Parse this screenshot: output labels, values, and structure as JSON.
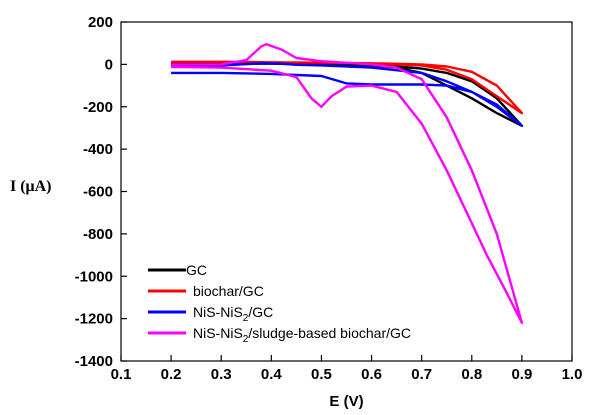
{
  "chart_data": {
    "type": "line",
    "xlabel": "E (V)",
    "ylabel": "I (μA)",
    "xlim": [
      0.1,
      1.0
    ],
    "ylim": [
      -1400,
      200
    ],
    "xticks": [
      "0.1",
      "0.2",
      "0.3",
      "0.4",
      "0.5",
      "0.6",
      "0.7",
      "0.8",
      "0.9",
      "1.0"
    ],
    "yticks": [
      "200",
      "0",
      "-200",
      "-400",
      "-600",
      "-800",
      "-1000",
      "-1200",
      "-1400"
    ],
    "grid": false,
    "legend_position": "bottom-left",
    "series": [
      {
        "name": "GC",
        "legend_main": "GC",
        "legend_sub": "",
        "legend_tail": "",
        "color": "#000000",
        "points": [
          [
            0.2,
            5
          ],
          [
            0.3,
            5
          ],
          [
            0.4,
            4
          ],
          [
            0.5,
            0
          ],
          [
            0.6,
            -5
          ],
          [
            0.65,
            -10
          ],
          [
            0.7,
            -20
          ],
          [
            0.75,
            -40
          ],
          [
            0.8,
            -80
          ],
          [
            0.85,
            -160
          ],
          [
            0.9,
            -290
          ],
          [
            0.85,
            -230
          ],
          [
            0.8,
            -160
          ],
          [
            0.75,
            -100
          ],
          [
            0.7,
            -40
          ],
          [
            0.65,
            -15
          ],
          [
            0.6,
            -5
          ],
          [
            0.5,
            0
          ],
          [
            0.4,
            3
          ],
          [
            0.3,
            3
          ],
          [
            0.2,
            3
          ]
        ]
      },
      {
        "name": "biochar/GC",
        "legend_main": "biochar/GC",
        "legend_sub": "",
        "legend_tail": "",
        "color": "#ff0000",
        "points": [
          [
            0.2,
            12
          ],
          [
            0.3,
            12
          ],
          [
            0.4,
            10
          ],
          [
            0.5,
            8
          ],
          [
            0.6,
            5
          ],
          [
            0.7,
            0
          ],
          [
            0.75,
            -10
          ],
          [
            0.8,
            -35
          ],
          [
            0.85,
            -100
          ],
          [
            0.9,
            -230
          ],
          [
            0.85,
            -150
          ],
          [
            0.8,
            -70
          ],
          [
            0.75,
            -25
          ],
          [
            0.7,
            -5
          ],
          [
            0.6,
            5
          ],
          [
            0.5,
            8
          ],
          [
            0.4,
            10
          ],
          [
            0.3,
            12
          ],
          [
            0.2,
            12
          ]
        ]
      },
      {
        "name": "NiS-NiS2/GC",
        "legend_main": "NiS-NiS",
        "legend_sub": "2",
        "legend_tail": "/GC",
        "color": "#0000ff",
        "points": [
          [
            0.2,
            -40
          ],
          [
            0.3,
            -40
          ],
          [
            0.4,
            -45
          ],
          [
            0.5,
            -55
          ],
          [
            0.55,
            -90
          ],
          [
            0.6,
            -95
          ],
          [
            0.65,
            -95
          ],
          [
            0.7,
            -95
          ],
          [
            0.75,
            -100
          ],
          [
            0.8,
            -130
          ],
          [
            0.85,
            -190
          ],
          [
            0.9,
            -290
          ],
          [
            0.85,
            -200
          ],
          [
            0.8,
            -130
          ],
          [
            0.75,
            -80
          ],
          [
            0.7,
            -40
          ],
          [
            0.6,
            -15
          ],
          [
            0.5,
            -5
          ],
          [
            0.45,
            -2
          ],
          [
            0.42,
            3
          ],
          [
            0.38,
            5
          ],
          [
            0.3,
            -5
          ],
          [
            0.2,
            -5
          ]
        ]
      },
      {
        "name": "NiS-NiS2/sludge-based biochar/GC",
        "legend_main": "NiS-NiS",
        "legend_sub": "2",
        "legend_tail": "/sludge-based biochar/GC",
        "color": "#ff00ff",
        "points": [
          [
            0.2,
            0
          ],
          [
            0.3,
            0
          ],
          [
            0.35,
            20
          ],
          [
            0.38,
            85
          ],
          [
            0.39,
            95
          ],
          [
            0.42,
            70
          ],
          [
            0.45,
            30
          ],
          [
            0.5,
            15
          ],
          [
            0.6,
            0
          ],
          [
            0.65,
            -15
          ],
          [
            0.7,
            -70
          ],
          [
            0.75,
            -250
          ],
          [
            0.8,
            -500
          ],
          [
            0.85,
            -800
          ],
          [
            0.9,
            -1220
          ],
          [
            0.87,
            -1080
          ],
          [
            0.83,
            -900
          ],
          [
            0.8,
            -750
          ],
          [
            0.75,
            -500
          ],
          [
            0.7,
            -280
          ],
          [
            0.65,
            -130
          ],
          [
            0.6,
            -100
          ],
          [
            0.55,
            -105
          ],
          [
            0.52,
            -150
          ],
          [
            0.5,
            -200
          ],
          [
            0.48,
            -160
          ],
          [
            0.45,
            -60
          ],
          [
            0.4,
            -30
          ],
          [
            0.3,
            -15
          ],
          [
            0.2,
            -12
          ]
        ]
      }
    ]
  }
}
